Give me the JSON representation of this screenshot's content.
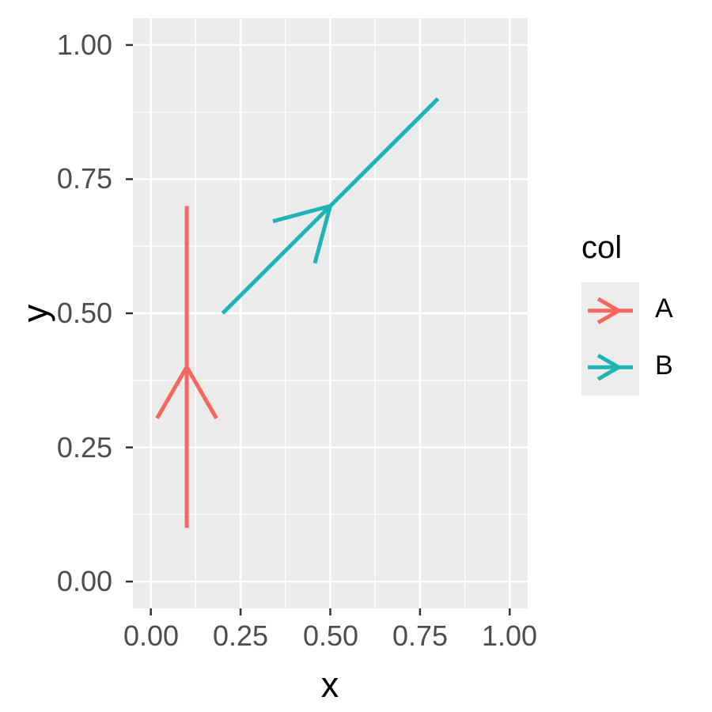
{
  "figure": {
    "background": "#FFFFFF"
  },
  "chart_data": {
    "type": "segment",
    "title": "",
    "xlabel": "x",
    "ylabel": "y",
    "xlim": [
      -0.05,
      1.05
    ],
    "ylim": [
      -0.05,
      1.05
    ],
    "grid": "major-and-minor",
    "panel_background": "#EBEBEB",
    "gridline_color": "#FFFFFF",
    "tick_mark_color": "#333333",
    "tick_label_color": "#4D4D4D",
    "axis_title_color": "#000000",
    "x_ticks": {
      "values": [
        0,
        0.25,
        0.5,
        0.75,
        1
      ],
      "labels": [
        "0.00",
        "0.25",
        "0.50",
        "0.75",
        "1.00"
      ]
    },
    "y_ticks": {
      "values": [
        0,
        0.25,
        0.5,
        0.75,
        1
      ],
      "labels": [
        "0.00",
        "0.25",
        "0.50",
        "0.75",
        "1.00"
      ]
    },
    "x_minor": [
      0.125,
      0.375,
      0.625,
      0.875
    ],
    "y_minor": [
      0.125,
      0.375,
      0.625,
      0.875
    ],
    "series": [
      {
        "name": "A",
        "color": "#F4675E",
        "segment": {
          "x": 0.1,
          "y": 0.1,
          "xend": 0.1,
          "yend": 0.7
        },
        "arrow": {
          "at": "midpoint",
          "angle_deg": 30,
          "style": "open"
        }
      },
      {
        "name": "B",
        "color": "#1CB4B7",
        "segment": {
          "x": 0.2,
          "y": 0.5,
          "xend": 0.8,
          "yend": 0.9
        },
        "arrow": {
          "at": "midpoint",
          "angle_deg": 30,
          "style": "open"
        }
      }
    ],
    "legend": {
      "title": "col",
      "position": "right",
      "key_background": "#ECECEC",
      "entries": [
        {
          "label": "A",
          "color": "#F4675E"
        },
        {
          "label": "B",
          "color": "#1CB4B7"
        }
      ]
    }
  }
}
